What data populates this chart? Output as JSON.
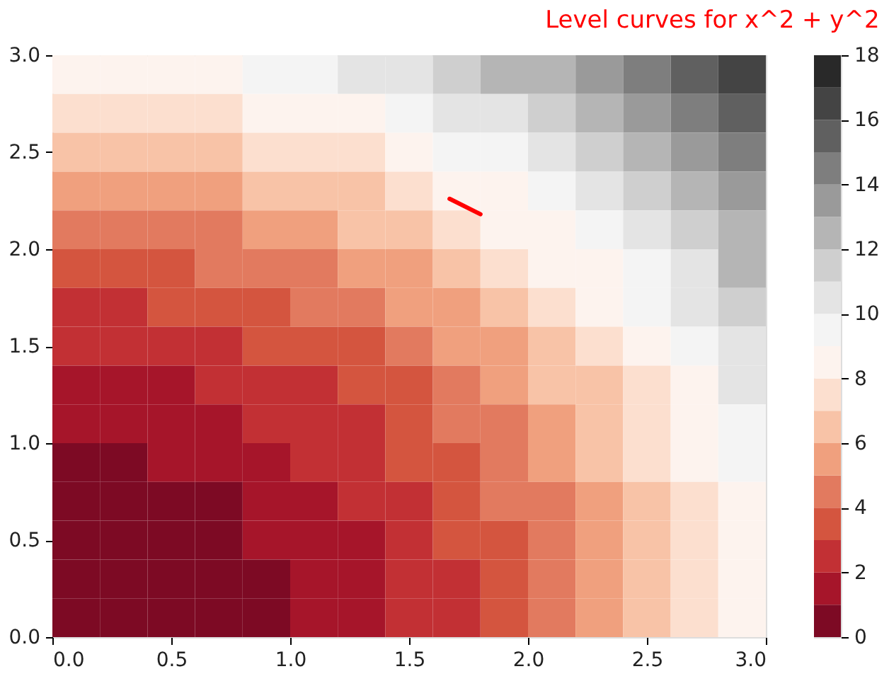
{
  "chart_data": {
    "type": "heatmap",
    "title": "Level curves for x^2 + y^2",
    "x": [
      0.1,
      0.3,
      0.5,
      0.7,
      0.9,
      1.1,
      1.3,
      1.5,
      1.7,
      1.9,
      2.1,
      2.3,
      2.5,
      2.7,
      2.9
    ],
    "y": [
      2.9,
      2.7,
      2.5,
      2.3,
      2.1,
      1.9,
      1.7,
      1.5,
      1.3,
      1.1,
      0.9,
      0.7,
      0.5,
      0.3,
      0.1
    ],
    "cells": [
      [
        8,
        8,
        8,
        8,
        9,
        9,
        10,
        10,
        11,
        12,
        12,
        13,
        14,
        15,
        16
      ],
      [
        7,
        7,
        7,
        7,
        8,
        8,
        8,
        9,
        10,
        10,
        11,
        12,
        13,
        14,
        15
      ],
      [
        6,
        6,
        6,
        6,
        7,
        7,
        7,
        8,
        9,
        9,
        10,
        11,
        12,
        13,
        14
      ],
      [
        5,
        5,
        5,
        5,
        6,
        6,
        6,
        7,
        8,
        8,
        9,
        10,
        11,
        12,
        13
      ],
      [
        4,
        4,
        4,
        4,
        5,
        5,
        6,
        6,
        7,
        8,
        8,
        9,
        10,
        11,
        12
      ],
      [
        3,
        3,
        3,
        4,
        4,
        4,
        5,
        5,
        6,
        7,
        8,
        8,
        9,
        10,
        12
      ],
      [
        2,
        2,
        3,
        3,
        3,
        4,
        4,
        5,
        5,
        6,
        7,
        8,
        9,
        10,
        11
      ],
      [
        2,
        2,
        2,
        2,
        3,
        3,
        3,
        4,
        5,
        5,
        6,
        7,
        8,
        9,
        10
      ],
      [
        1,
        1,
        1,
        2,
        2,
        2,
        3,
        3,
        4,
        5,
        6,
        6,
        7,
        8,
        10
      ],
      [
        1,
        1,
        1,
        1,
        2,
        2,
        2,
        3,
        4,
        4,
        5,
        6,
        7,
        8,
        9
      ],
      [
        0,
        0,
        1,
        1,
        1,
        2,
        2,
        3,
        3,
        4,
        5,
        6,
        7,
        8,
        9
      ],
      [
        0,
        0,
        0,
        0,
        1,
        1,
        2,
        2,
        3,
        4,
        4,
        5,
        6,
        7,
        8
      ],
      [
        0,
        0,
        0,
        0,
        1,
        1,
        1,
        2,
        3,
        3,
        4,
        5,
        6,
        7,
        8
      ],
      [
        0,
        0,
        0,
        0,
        0,
        1,
        1,
        2,
        2,
        3,
        4,
        5,
        6,
        7,
        8
      ],
      [
        0,
        0,
        0,
        0,
        0,
        1,
        1,
        2,
        2,
        3,
        4,
        5,
        6,
        7,
        8
      ]
    ],
    "colors": [
      "#7d0a24",
      "#a6152a",
      "#c23034",
      "#d4553f",
      "#e27a5f",
      "#f0a07e",
      "#f8c3a7",
      "#fcdfcf",
      "#fdf3ee",
      "#f4f4f4",
      "#e4e4e4",
      "#cfcfcf",
      "#b5b5b5",
      "#9a9a9a",
      "#7e7e7e",
      "#606060",
      "#444444",
      "#292929"
    ],
    "clim": [
      0,
      18
    ],
    "cticks": [
      0,
      2,
      4,
      6,
      8,
      10,
      12,
      14,
      16,
      18
    ],
    "xlim": [
      0,
      3
    ],
    "ylim": [
      0,
      3
    ],
    "xticks": [
      {
        "value": 0,
        "label": "0.0"
      },
      {
        "value": 0.5,
        "label": "0.5"
      },
      {
        "value": 1,
        "label": "1.0"
      },
      {
        "value": 1.5,
        "label": "1.5"
      },
      {
        "value": 2,
        "label": "2.0"
      },
      {
        "value": 2.5,
        "label": "2.5"
      },
      {
        "value": 3,
        "label": "3.0"
      }
    ],
    "yticks": [
      {
        "value": 0,
        "label": "0.0"
      },
      {
        "value": 0.5,
        "label": "0.5"
      },
      {
        "value": 1,
        "label": "1.0"
      },
      {
        "value": 1.5,
        "label": "1.5"
      },
      {
        "value": 2,
        "label": "2.0"
      },
      {
        "value": 2.5,
        "label": "2.5"
      },
      {
        "value": 3,
        "label": "3.0"
      }
    ],
    "series": [
      {
        "type": "line",
        "color": "#ff0000",
        "x": [
          1.67,
          1.8
        ],
        "values": [
          2.26,
          2.18
        ]
      }
    ],
    "grid": false
  }
}
